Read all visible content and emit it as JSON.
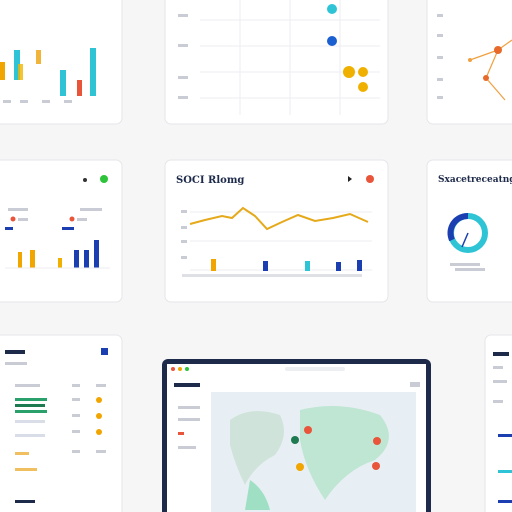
{
  "cards": {
    "line_card": {
      "title": "SOCI Rlomg"
    },
    "donut_card": {
      "title": "Sxacetreceatng"
    }
  }
}
